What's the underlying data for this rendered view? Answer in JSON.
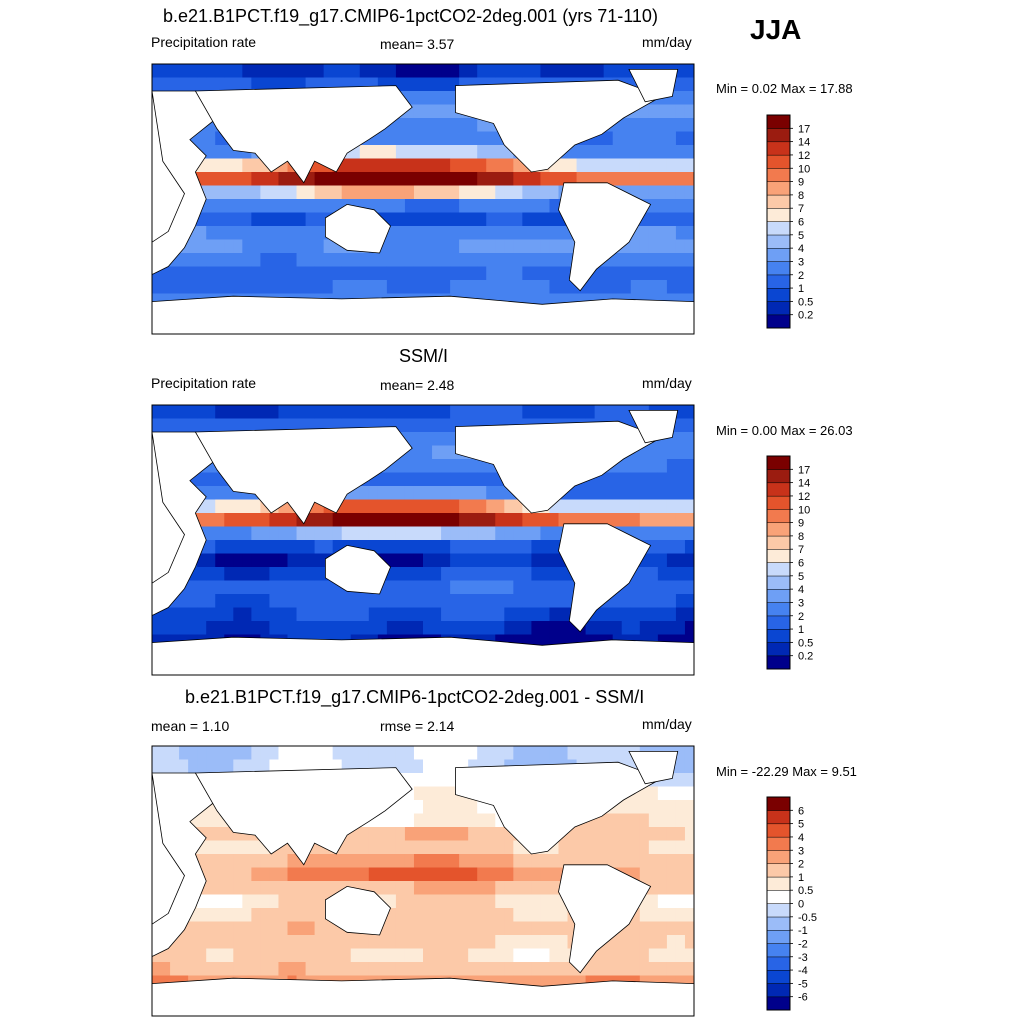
{
  "season": "JJA",
  "chart_data": [
    {
      "type": "heatmap",
      "title": "b.e21.B1PCT.f19_g17.CMIP6-1pctCO2-2deg.001 (yrs 71-110)",
      "left_label": "Precipitation rate",
      "center_label": "mean=   3.57",
      "units": "mm/day",
      "minmax": "Min =   0.02 Max =  17.88",
      "mean": 3.57,
      "min": 0.02,
      "max": 17.88,
      "levels": [
        "0.2",
        "0.5",
        "1",
        "2",
        "3",
        "4",
        "5",
        "6",
        "7",
        "8",
        "9",
        "10",
        "12",
        "14",
        "17"
      ],
      "colors": [
        "#00008b",
        "#0028b4",
        "#0a46d2",
        "#2864e6",
        "#4682f0",
        "#6e9ff5",
        "#9bbcf8",
        "#c8dafb",
        "#fdebd8",
        "#fcc9a8",
        "#f9a278",
        "#f27a4e",
        "#e4542c",
        "#c8321a",
        "#9b1c10",
        "#7a0000"
      ],
      "band_profile": [
        0.5,
        1.2,
        2.4,
        3.3,
        2.6,
        2.1,
        4.2,
        9.5,
        15.5,
        6.0,
        2.3,
        1.0,
        2.6,
        3.1,
        2.4,
        1.6,
        1.9,
        2.4,
        1.4,
        0.6
      ]
    },
    {
      "type": "heatmap",
      "title": "SSM/I",
      "left_label": "Precipitation rate",
      "center_label": "mean=   2.48",
      "units": "mm/day",
      "minmax": "Min =   0.00 Max =  26.03",
      "mean": 2.48,
      "min": 0.0,
      "max": 26.03,
      "levels": [
        "0.2",
        "0.5",
        "1",
        "2",
        "3",
        "4",
        "5",
        "6",
        "7",
        "8",
        "9",
        "10",
        "12",
        "14",
        "17"
      ],
      "colors": [
        "#00008b",
        "#0028b4",
        "#0a46d2",
        "#2864e6",
        "#4682f0",
        "#6e9ff5",
        "#9bbcf8",
        "#c8dafb",
        "#fdebd8",
        "#fcc9a8",
        "#f9a278",
        "#f27a4e",
        "#e4542c",
        "#c8321a",
        "#9b1c10",
        "#7a0000"
      ],
      "band_profile": [
        0.8,
        1.5,
        2.5,
        2.8,
        2.2,
        1.6,
        2.8,
        8.5,
        14.0,
        4.0,
        1.0,
        0.4,
        0.9,
        1.7,
        1.3,
        0.8,
        0.5,
        0.2,
        0.2,
        0.2
      ]
    },
    {
      "type": "heatmap",
      "title": "b.e21.B1PCT.f19_g17.CMIP6-1pctCO2-2deg.001 - SSM/I",
      "left_label": "mean =   1.10",
      "center_label": "rmse =   2.14",
      "units": "mm/day",
      "minmax": "Min = -22.29 Max =   9.51",
      "mean": 1.1,
      "rmse": 2.14,
      "min": -22.29,
      "max": 9.51,
      "levels": [
        "-6",
        "-5",
        "-4",
        "-3",
        "-2",
        "-1",
        "-0.5",
        "0",
        "0.5",
        "1",
        "2",
        "3",
        "4",
        "5",
        "6"
      ],
      "colors": [
        "#00008b",
        "#0028b4",
        "#0a46d2",
        "#2864e6",
        "#4682f0",
        "#6e9ff5",
        "#9bbcf8",
        "#c8dafb",
        "#ffffff",
        "#fdebd8",
        "#fcc9a8",
        "#f9a278",
        "#f27a4e",
        "#e4542c",
        "#c8321a",
        "#7a0000"
      ],
      "band_profile": [
        -0.3,
        -0.3,
        0.2,
        0.6,
        0.6,
        0.8,
        1.7,
        1.2,
        2.2,
        3.2,
        1.8,
        0.9,
        1.2,
        1.5,
        1.3,
        1.0,
        1.6,
        2.7,
        3.1,
        2.7
      ]
    }
  ]
}
